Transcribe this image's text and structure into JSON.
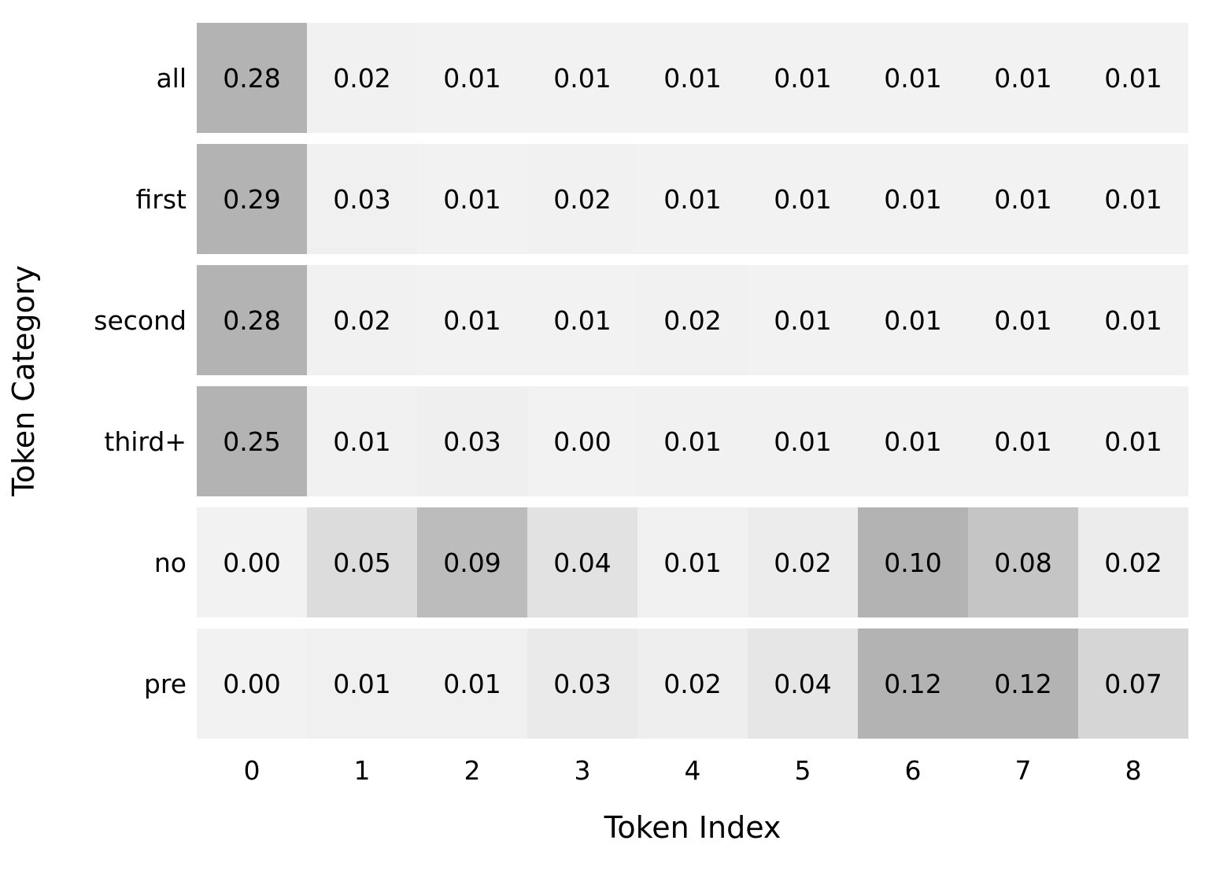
{
  "chart_data": {
    "type": "heatmap",
    "title": "",
    "xlabel": "Token Index",
    "ylabel": "Token Category",
    "x_ticks": [
      "0",
      "1",
      "2",
      "3",
      "4",
      "5",
      "6",
      "7",
      "8"
    ],
    "y_ticks": [
      "all",
      "first",
      "second",
      "third+",
      "no",
      "pre"
    ],
    "value_format_decimals": 2,
    "rows": [
      {
        "category": "all",
        "values": [
          0.28,
          0.02,
          0.01,
          0.01,
          0.01,
          0.01,
          0.01,
          0.01,
          0.01
        ]
      },
      {
        "category": "first",
        "values": [
          0.29,
          0.03,
          0.01,
          0.02,
          0.01,
          0.01,
          0.01,
          0.01,
          0.01
        ]
      },
      {
        "category": "second",
        "values": [
          0.28,
          0.02,
          0.01,
          0.01,
          0.02,
          0.01,
          0.01,
          0.01,
          0.01
        ]
      },
      {
        "category": "third+",
        "values": [
          0.25,
          0.01,
          0.03,
          0.0,
          0.01,
          0.01,
          0.01,
          0.01,
          0.01
        ]
      },
      {
        "category": "no",
        "values": [
          0.0,
          0.05,
          0.09,
          0.04,
          0.01,
          0.02,
          0.1,
          0.08,
          0.02
        ]
      },
      {
        "category": "pre",
        "values": [
          0.0,
          0.01,
          0.01,
          0.03,
          0.02,
          0.04,
          0.12,
          0.12,
          0.07
        ]
      }
    ],
    "layout_hints": {
      "grid_lines": "off",
      "legend": "none",
      "cell_annotations": "on",
      "color_scaling": "per-row, light-to-dark gray"
    },
    "colors": {
      "background": "#ffffff",
      "text": "#000000",
      "cell_low": "#f2f2f2",
      "cell_high": "#b3b3b3"
    }
  }
}
